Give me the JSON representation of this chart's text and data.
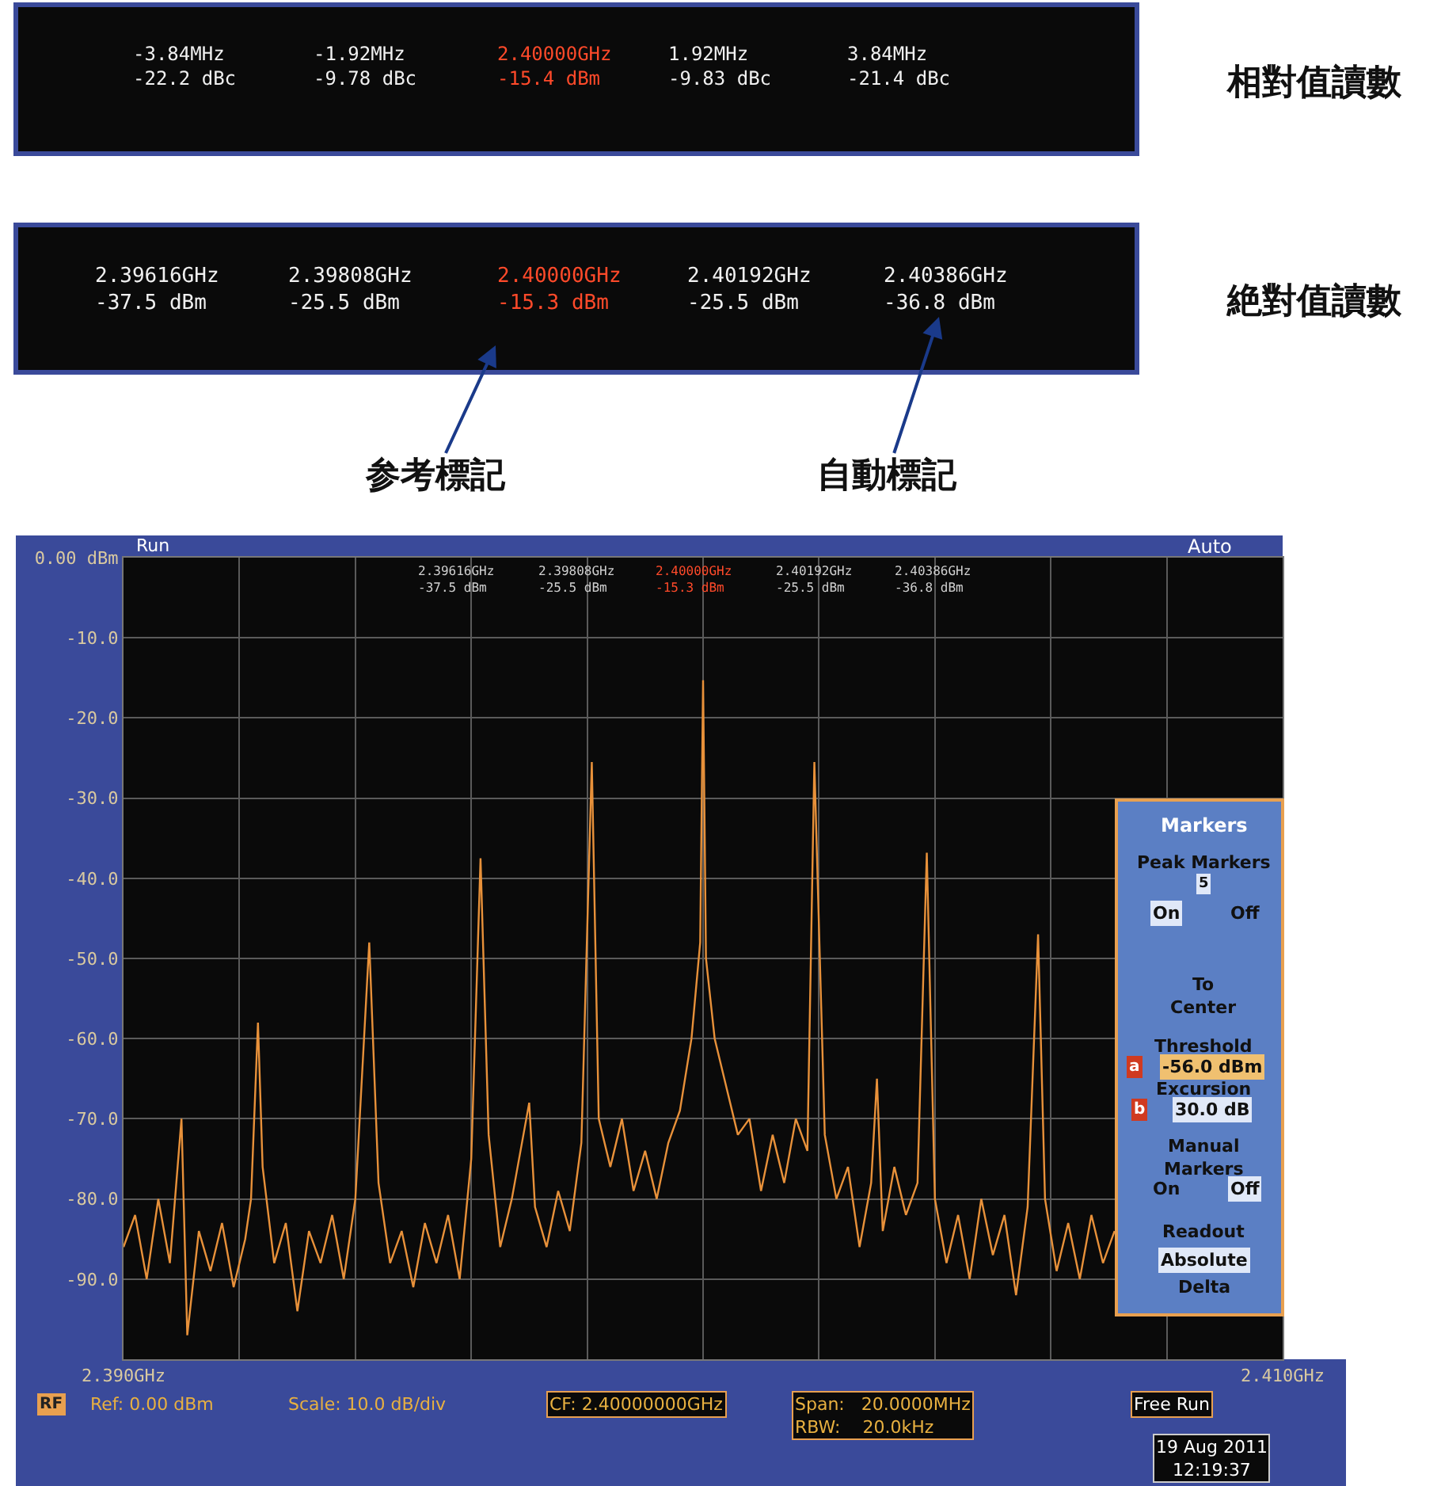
{
  "chart_data": {
    "type": "line",
    "x": [
      2.39,
      2.3902,
      2.3904,
      2.3906,
      2.3908,
      2.391,
      2.3911,
      2.3913,
      2.3915,
      2.3917,
      2.3919,
      2.3921,
      2.3922,
      2.39232,
      2.3924,
      2.3926,
      2.3928,
      2.393,
      2.3932,
      2.3934,
      2.3936,
      2.3938,
      2.394,
      2.39424,
      2.3944,
      2.3946,
      2.3948,
      2.395,
      2.3952,
      2.3954,
      2.3956,
      2.3958,
      2.396,
      2.39616,
      2.3963,
      2.3965,
      2.3967,
      2.397,
      2.3971,
      2.3973,
      2.3975,
      2.3977,
      2.3979,
      2.39808,
      2.3982,
      2.3984,
      2.3986,
      2.3988,
      2.399,
      2.3992,
      2.3994,
      2.3996,
      2.3998,
      2.39995,
      2.4,
      2.40005,
      2.4002,
      2.4004,
      2.4006,
      2.4008,
      2.401,
      2.4012,
      2.4014,
      2.4016,
      2.4018,
      2.40192,
      2.4021,
      2.4023,
      2.4025,
      2.4027,
      2.4029,
      2.403,
      2.4031,
      2.4033,
      2.4035,
      2.4037,
      2.40386,
      2.404,
      2.4042,
      2.4044,
      2.4046,
      2.4048,
      2.405,
      2.4052,
      2.4054,
      2.4056,
      2.40578,
      2.4059,
      2.4061,
      2.4063,
      2.4065,
      2.4067,
      2.4069,
      2.4071
    ],
    "series": [
      {
        "color": "#e8913a",
        "values": [
          -86,
          -82,
          -90,
          -80,
          -88,
          -70,
          -97,
          -84,
          -89,
          -83,
          -91,
          -85,
          -80,
          -58,
          -76,
          -88,
          -83,
          -94,
          -84,
          -88,
          -82,
          -90,
          -80,
          -48,
          -78,
          -88,
          -84,
          -91,
          -83,
          -88,
          -82,
          -90,
          -75,
          -37.5,
          -72,
          -86,
          -80,
          -68,
          -81,
          -86,
          -79,
          -84,
          -73,
          -25.5,
          -70,
          -76,
          -70,
          -79,
          -74,
          -80,
          -73,
          -69,
          -60,
          -48,
          -15.3,
          -50,
          -60,
          -66,
          -72,
          -70,
          -79,
          -72,
          -78,
          -70,
          -74,
          -25.5,
          -72,
          -80,
          -76,
          -86,
          -78,
          -65,
          -84,
          -76,
          -82,
          -78,
          -36.8,
          -80,
          -88,
          -82,
          -90,
          -80,
          -87,
          -82,
          -92,
          -81,
          -47,
          -80,
          -89,
          -83,
          -90,
          -82,
          -88,
          -84
        ]
      }
    ],
    "xlim": [
      2.39,
      2.41
    ],
    "ylim": [
      -100,
      0
    ],
    "xticks": [
      {
        "value": 2.39,
        "label": "2.390GHz"
      },
      {
        "value": 2.392,
        "label": null
      },
      {
        "value": 2.394,
        "label": null
      },
      {
        "value": 2.396,
        "label": null
      },
      {
        "value": 2.398,
        "label": null
      },
      {
        "value": 2.4,
        "label": null
      },
      {
        "value": 2.402,
        "label": null
      },
      {
        "value": 2.404,
        "label": null
      },
      {
        "value": 2.406,
        "label": null
      },
      {
        "value": 2.408,
        "label": null
      },
      {
        "value": 2.41,
        "label": "2.410GHz"
      }
    ],
    "yticks": [
      {
        "value": 0,
        "label": "0.00 dBm"
      },
      {
        "value": -10,
        "label": "-10.0"
      },
      {
        "value": -20,
        "label": "-20.0"
      },
      {
        "value": -30,
        "label": "-30.0"
      },
      {
        "value": -40,
        "label": "-40.0"
      },
      {
        "value": -50,
        "label": "-50.0"
      },
      {
        "value": -60,
        "label": "-60.0"
      },
      {
        "value": -70,
        "label": "-70.0"
      },
      {
        "value": -80,
        "label": "-80.0"
      },
      {
        "value": -90,
        "label": "-90.0"
      },
      {
        "value": -100,
        "label": null
      }
    ],
    "grid": true,
    "annotations": [
      "相對值讀數",
      "絶對值讀數",
      "参考標記",
      "自動標記",
      "-3.84MHz\n-22.2 dBc",
      "-1.92MHz\n-9.78 dBc",
      "2.40000GHz\n-15.4 dBm",
      "1.92MHz\n-9.83 dBc",
      "3.84MHz\n-21.4 dBc",
      "2.39616GHz\n-37.5 dBm",
      "2.39808GHz\n-25.5 dBm",
      "2.40000GHz\n-15.3 dBm",
      "2.40192GHz\n-25.5 dBm",
      "2.40386GHz\n-36.8 dBm",
      "2.39616GHz\n-37.5 dBm",
      "2.39808GHz\n-25.5 dBm",
      "2.40000GHz\n-15.3 dBm",
      "2.40192GHz\n-25.5 dBm",
      "2.40386GHz\n-36.8 dBm",
      "Run",
      "Auto",
      "Ref: 0.00 dBm",
      "Scale: 10.0 dB/div",
      "CF: 2.40000000GHz",
      "Span:   20.0000MHz\nRBW:    20.0kHz",
      "Free Run",
      "19 Aug 2011\n12:19:37",
      "RF",
      "Markers",
      "Peak Markers",
      "5",
      "On",
      "Off",
      "To\nCenter",
      "Threshold",
      "-56.0 dBm",
      "Excursion",
      "30.0 dB",
      "Manual\nMarkers",
      "On",
      "Off",
      "Readout",
      "Absolute",
      "Delta",
      "a",
      "b"
    ]
  }
}
